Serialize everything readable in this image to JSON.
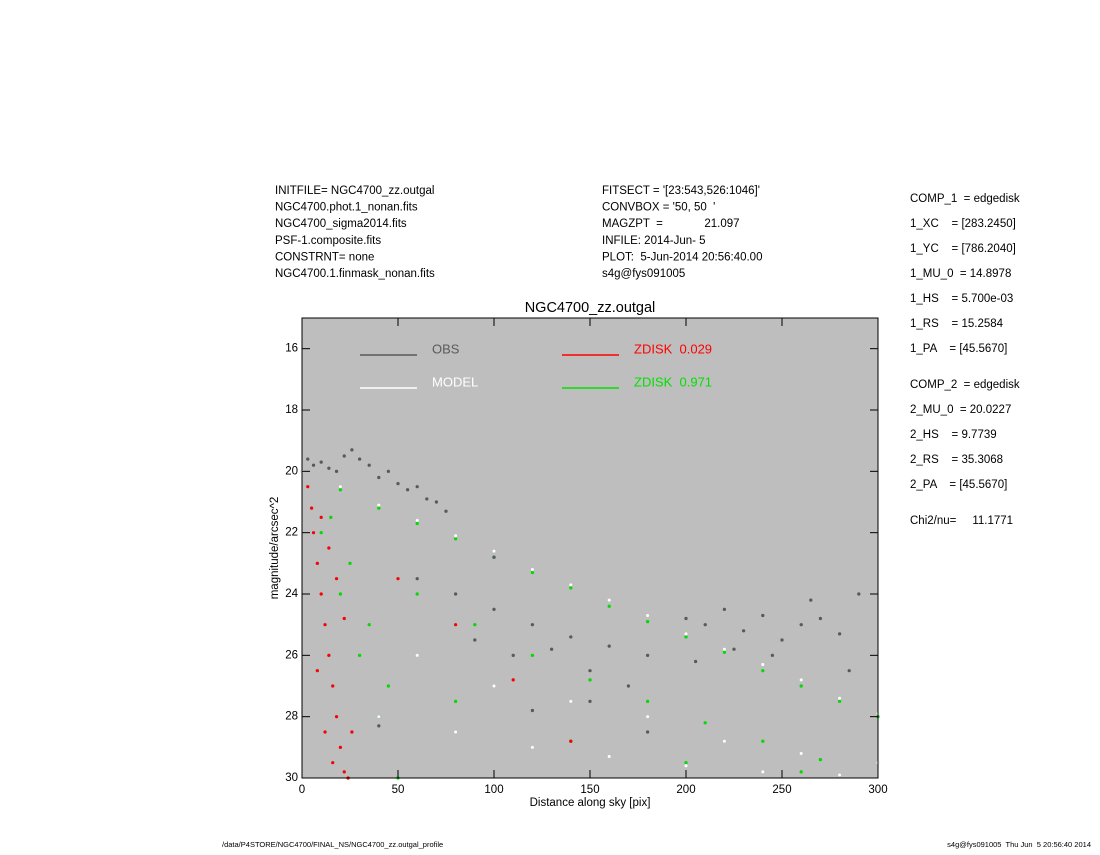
{
  "header": {
    "left": [
      "INITFILE= NGC4700_zz.outgal",
      "NGC4700.phot.1_nonan.fits",
      "NGC4700_sigma2014.fits",
      "PSF-1.composite.fits",
      "CONSTRNT= none",
      "NGC4700.1.finmask_nonan.fits"
    ],
    "middle": [
      "FITSECT = '[23:543,526:1046]'",
      "CONVBOX = '50, 50  '",
      "MAGZPT  =             21.097",
      "INFILE: 2014-Jun- 5",
      "PLOT:  5-Jun-2014 20:56:40.00",
      "s4g@fys091005"
    ]
  },
  "params": {
    "comp1": [
      "COMP_1  = edgedisk",
      "1_XC    = [283.2450]",
      "1_YC    = [786.2040]",
      "1_MU_0  = 14.8978",
      "1_HS    = 5.700e-03",
      "1_RS    = 15.2584",
      "1_PA    = [45.5670]"
    ],
    "comp2": [
      "COMP_2  = edgedisk",
      "2_MU_0  = 20.0227",
      "2_HS    = 9.7739",
      "2_RS    = 35.3068",
      "2_PA    = [45.5670]"
    ],
    "chi": "Chi2/nu=     11.1771"
  },
  "footer": {
    "left": "/data/P4STORE/NGC4700/FINAL_NS/NGC4700_zz.outgal_profile",
    "right": "s4g@fys091005  Thu Jun  5 20:56:40 2014"
  },
  "chart_data": {
    "type": "scatter",
    "title": "NGC4700_zz.outgal",
    "x_label": "Distance along sky [pix]",
    "y_label": "magnitude/arcsec^2",
    "xlim": [
      0,
      300
    ],
    "ylim": [
      30,
      15
    ],
    "xticks": [
      0,
      50,
      100,
      150,
      200,
      250,
      300
    ],
    "yticks": [
      16,
      18,
      20,
      22,
      24,
      26,
      28,
      30
    ],
    "background": "#bebebe",
    "series": [
      {
        "name": "OBS",
        "color": "#5a5a5a",
        "x": [
          3,
          6,
          10,
          14,
          18,
          22,
          26,
          30,
          35,
          40,
          45,
          50,
          55,
          60,
          65,
          70,
          75,
          60,
          80,
          100,
          120,
          140,
          160,
          180,
          90,
          110,
          130,
          150,
          170,
          200,
          210,
          220,
          230,
          240,
          250,
          260,
          270,
          280,
          290,
          205,
          225,
          245,
          265,
          285,
          150,
          180,
          40,
          120,
          100
        ],
        "values": [
          19.6,
          19.8,
          19.7,
          19.9,
          20.0,
          19.5,
          19.3,
          19.6,
          19.8,
          20.2,
          20.0,
          20.4,
          20.6,
          20.5,
          20.9,
          21.0,
          21.3,
          23.5,
          24.0,
          24.5,
          25.0,
          25.4,
          25.7,
          26.0,
          25.5,
          26.0,
          25.8,
          26.5,
          27.0,
          24.8,
          25.0,
          24.5,
          25.2,
          24.7,
          25.5,
          25.0,
          24.8,
          25.3,
          24.0,
          26.2,
          25.8,
          26.0,
          24.2,
          26.5,
          27.5,
          28.5,
          28.3,
          27.8,
          22.8
        ]
      },
      {
        "name": "MODEL",
        "color": "#ffffff",
        "x": [
          0,
          20,
          40,
          60,
          80,
          100,
          120,
          140,
          160,
          180,
          200,
          220,
          240,
          260,
          280,
          300,
          40,
          80,
          120,
          160,
          200,
          240,
          280,
          300,
          60,
          100,
          140,
          180,
          220,
          260
        ],
        "values": [
          20.0,
          20.5,
          21.1,
          21.6,
          22.1,
          22.6,
          23.2,
          23.7,
          24.2,
          24.7,
          25.3,
          25.8,
          26.3,
          26.8,
          27.4,
          27.9,
          28.0,
          28.5,
          29.0,
          29.3,
          29.6,
          29.8,
          29.9,
          29.5,
          26.0,
          27.0,
          27.5,
          28.0,
          28.8,
          29.2
        ]
      },
      {
        "name": "ZDISK  0.029",
        "color": "#ff0000",
        "x": [
          3,
          5,
          6,
          8,
          10,
          12,
          14,
          16,
          18,
          20,
          22,
          24,
          10,
          14,
          18,
          22,
          26,
          8,
          12,
          16,
          50,
          80,
          110,
          140
        ],
        "values": [
          20.5,
          21.2,
          22.0,
          23.0,
          24.0,
          25.0,
          26.0,
          27.0,
          28.0,
          29.0,
          29.8,
          30.0,
          21.5,
          22.5,
          23.5,
          24.8,
          28.5,
          26.5,
          28.5,
          29.5,
          23.5,
          25.0,
          26.8,
          28.8
        ]
      },
      {
        "name": "ZDISK  0.971",
        "color": "#00e000",
        "x": [
          0,
          20,
          40,
          60,
          80,
          100,
          120,
          140,
          160,
          180,
          200,
          220,
          240,
          260,
          280,
          300,
          10,
          20,
          30,
          40,
          50,
          15,
          25,
          35,
          45,
          60,
          90,
          120,
          150,
          180,
          210,
          240,
          270,
          80,
          140,
          200,
          260
        ],
        "values": [
          20.0,
          20.6,
          21.2,
          21.7,
          22.2,
          22.8,
          23.3,
          23.8,
          24.4,
          24.9,
          25.4,
          25.9,
          26.5,
          27.0,
          27.5,
          28.0,
          22.0,
          24.0,
          26.0,
          28.0,
          30.0,
          21.5,
          23.0,
          25.0,
          27.0,
          24.0,
          25.0,
          26.0,
          26.8,
          27.5,
          28.2,
          28.8,
          29.4,
          27.5,
          28.8,
          29.5,
          29.8
        ]
      }
    ]
  }
}
